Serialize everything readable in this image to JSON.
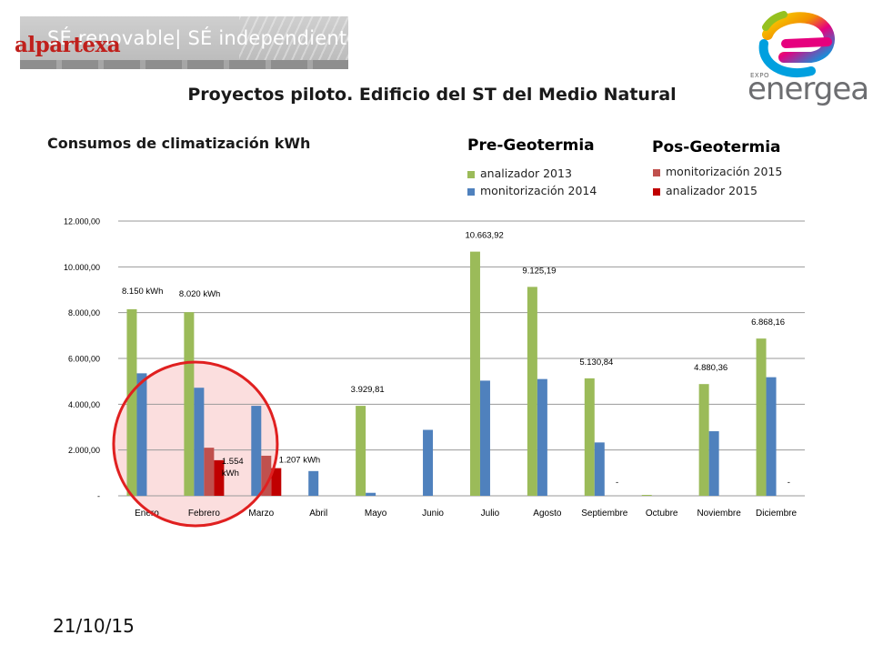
{
  "header": {
    "banner_text": "SÉ renovable| SÉ independiente",
    "banner_brand": "alpartexa",
    "title": "Proyectos piloto. Edificio del ST del Medio Natural",
    "logo_prefix": "EXPO",
    "logo_name": "energea"
  },
  "chart_heading": "Consumos de climatización kWh",
  "legend": {
    "pre": {
      "title": "Pre-Geotermia",
      "items": [
        "analizador  2013",
        "monitorización 2014"
      ]
    },
    "post": {
      "title": "Pos-Geotermia",
      "items": [
        "monitorización 2015",
        "analizador  2015"
      ]
    }
  },
  "footer": {
    "date": "21/10/15"
  },
  "colors": {
    "green": "#9bbb59",
    "blue": "#4f81bd",
    "light_red": "#c0504d",
    "dark_red": "#c00000",
    "highlight_circle": "#e02020",
    "highlight_fill": "#f9c8c8"
  },
  "chart_data": {
    "type": "bar",
    "categories": [
      "Enero",
      "Febrero",
      "Marzo",
      "Abril",
      "Mayo",
      "Junio",
      "Julio",
      "Agosto",
      "Septiembre",
      "Octubre",
      "Noviembre",
      "Diciembre"
    ],
    "ylim": [
      0,
      12000
    ],
    "yticks": [
      0,
      2000,
      4000,
      6000,
      8000,
      10000,
      12000
    ],
    "ytick_labels": [
      "-",
      "2.000,00",
      "4.000,00",
      "6.000,00",
      "8.000,00",
      "10.000,00",
      "12.000,00"
    ],
    "grid": true,
    "series": [
      {
        "name": "analizador  2013",
        "color": "#9bbb59",
        "values": [
          8150,
          8020,
          null,
          null,
          3929.81,
          null,
          10663.92,
          9125.19,
          5130.84,
          40,
          4880.36,
          6868.16
        ]
      },
      {
        "name": "monitorización 2014",
        "color": "#4f81bd",
        "values": [
          5350,
          4720,
          3930,
          1080,
          130,
          2880,
          5030,
          5100,
          2330,
          null,
          2820,
          5180
        ]
      },
      {
        "name": "monitorización 2015",
        "color": "#c0504d",
        "values": [
          null,
          2100,
          1750,
          null,
          null,
          null,
          null,
          null,
          null,
          null,
          null,
          null
        ]
      },
      {
        "name": "analizador  2015",
        "color": "#c00000",
        "values": [
          null,
          1554,
          1207,
          null,
          null,
          null,
          null,
          null,
          null,
          null,
          null,
          null
        ]
      }
    ],
    "data_labels": [
      {
        "category": "Enero",
        "series": 0,
        "text": "8.150 kWh"
      },
      {
        "category": "Febrero",
        "series": 0,
        "text": "8.020 kWh"
      },
      {
        "category": "Febrero",
        "series": 3,
        "text": "1.554 kWh"
      },
      {
        "category": "Marzo",
        "series": 3,
        "text": "1.207 kWh"
      },
      {
        "category": "Mayo",
        "series": 0,
        "text": "3.929,81"
      },
      {
        "category": "Julio",
        "series": 0,
        "text": "10.663,92"
      },
      {
        "category": "Agosto",
        "series": 0,
        "text": "9.125,19"
      },
      {
        "category": "Septiembre",
        "series": 0,
        "text": "5.130,84"
      },
      {
        "category": "Septiembre",
        "series": 2,
        "text": "-"
      },
      {
        "category": "Noviembre",
        "series": 0,
        "text": "4.880,36"
      },
      {
        "category": "Diciembre",
        "series": 0,
        "text": "6.868,16"
      },
      {
        "category": "Diciembre",
        "series": 2,
        "text": "-"
      }
    ],
    "highlight": "circle around Febrero and Marzo"
  }
}
